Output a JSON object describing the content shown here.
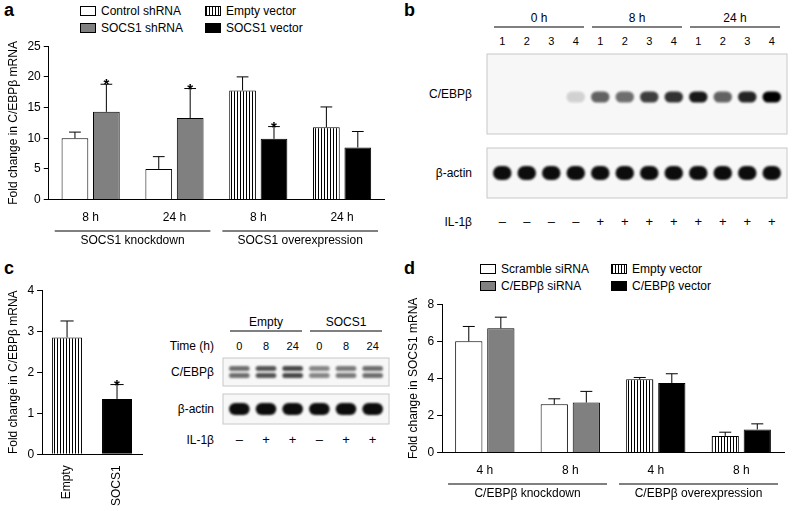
{
  "chart_data": [
    {
      "type": "bar",
      "panel": "a",
      "y_label": "Fold change in C/EBPβ mRNA",
      "categories": [
        "8 h",
        "24 h",
        "8 h",
        "24 h"
      ],
      "groups": [
        "SOCS1 knockdown",
        "SOCS1 overexpression"
      ],
      "series": [
        {
          "name": "Control shRNA",
          "color": "#ffffff",
          "values": [
            10.0,
            5.0,
            null,
            null
          ],
          "errors": [
            1.0,
            2.0,
            null,
            null
          ]
        },
        {
          "name": "SOCS1 shRNA",
          "color": "#808080",
          "values": [
            14.3,
            13.3,
            null,
            null
          ],
          "errors": [
            4.5,
            4.8,
            null,
            null
          ],
          "annotations": [
            "*",
            "*",
            null,
            null
          ]
        },
        {
          "name": "Empty vector",
          "color": "#ffffff",
          "values": [
            null,
            null,
            17.8,
            11.8
          ],
          "errors": [
            null,
            null,
            2.2,
            3.3
          ]
        },
        {
          "name": "SOCS1 vector",
          "color": "#000000",
          "values": [
            null,
            null,
            9.9,
            8.5
          ],
          "errors": [
            null,
            null,
            2.0,
            2.6
          ],
          "annotations": [
            null,
            null,
            "*",
            null
          ]
        }
      ],
      "ylim": [
        0,
        25
      ],
      "yticks": [
        0,
        5,
        10,
        15,
        20,
        25
      ],
      "grid": false,
      "legend": "top"
    },
    {
      "type": "bar",
      "panel": "c",
      "y_label": "Fold change in C/EBPβ mRNA",
      "categories": [
        "Empty",
        "SOCS1"
      ],
      "values": [
        2.85,
        1.35
      ],
      "errors": [
        0.4,
        0.35
      ],
      "annotations": [
        null,
        "*"
      ],
      "colors": [
        "#ffffff",
        "#000000"
      ],
      "ylim": [
        0,
        4
      ],
      "yticks": [
        0,
        1,
        2,
        3,
        4
      ],
      "grid": false
    },
    {
      "type": "bar",
      "panel": "d",
      "y_label": "Fold change in SOCS1 mRNA",
      "categories": [
        "4 h",
        "8 h",
        "4 h",
        "8 h"
      ],
      "groups": [
        "C/EBPβ knockdown",
        "C/EBPβ overexpression"
      ],
      "series": [
        {
          "name": "Scramble siRNA",
          "color": "#ffffff",
          "values": [
            6.0,
            2.6,
            null,
            null
          ],
          "errors": [
            0.8,
            0.3,
            null,
            null
          ]
        },
        {
          "name": "C/EBPβ siRNA",
          "color": "#808080",
          "values": [
            6.7,
            2.7,
            null,
            null
          ],
          "errors": [
            0.6,
            0.6,
            null,
            null
          ]
        },
        {
          "name": "Empty vector",
          "color": "#ffffff",
          "values": [
            null,
            null,
            3.95,
            0.9
          ],
          "errors": [
            null,
            null,
            0.1,
            0.2
          ]
        },
        {
          "name": "C/EBPβ vector",
          "color": "#000000",
          "values": [
            null,
            null,
            3.75,
            1.25
          ],
          "errors": [
            null,
            null,
            0.5,
            0.3
          ]
        }
      ],
      "ylim": [
        0,
        8
      ],
      "yticks": [
        0,
        2,
        4,
        6,
        8
      ],
      "grid": false,
      "legend": "top"
    }
  ],
  "blots": [
    {
      "panel": "b",
      "groups": [
        "0 h",
        "8 h",
        "24 h"
      ],
      "lanes": [
        1,
        2,
        3,
        4,
        1,
        2,
        3,
        4,
        1,
        2,
        3,
        4
      ],
      "rows": [
        {
          "label": "C/EBPβ",
          "bands": 1,
          "intensity": [
            0,
            0,
            0,
            0.15,
            0.6,
            0.55,
            0.75,
            0.8,
            0.9,
            0.6,
            0.85,
            1.0
          ]
        },
        {
          "label": "β-actin",
          "bands": 1,
          "intensity": [
            0.95,
            0.95,
            0.95,
            0.95,
            0.95,
            0.95,
            0.95,
            0.95,
            0.95,
            0.95,
            0.95,
            0.95
          ]
        }
      ],
      "treatment": {
        "label": "IL-1β",
        "marks": [
          "–",
          "–",
          "–",
          "–",
          "+",
          "+",
          "+",
          "+",
          "+",
          "+",
          "+",
          "+"
        ]
      }
    },
    {
      "groups": [
        "Empty",
        "SOCS1"
      ],
      "lane_label": "Time (h)",
      "lanes": [
        0,
        8,
        24,
        0,
        8,
        24
      ],
      "rows": [
        {
          "label": "C/EBPβ",
          "bands": 2,
          "intensity": [
            0.55,
            0.65,
            0.7,
            0.45,
            0.5,
            0.55
          ]
        },
        {
          "label": "β-actin",
          "bands": 1,
          "intensity": [
            0.95,
            0.95,
            0.95,
            0.95,
            0.95,
            0.95
          ]
        }
      ],
      "treatment": {
        "label": "IL-1β",
        "marks": [
          "–",
          "+",
          "+",
          "–",
          "+",
          "+"
        ]
      }
    }
  ]
}
